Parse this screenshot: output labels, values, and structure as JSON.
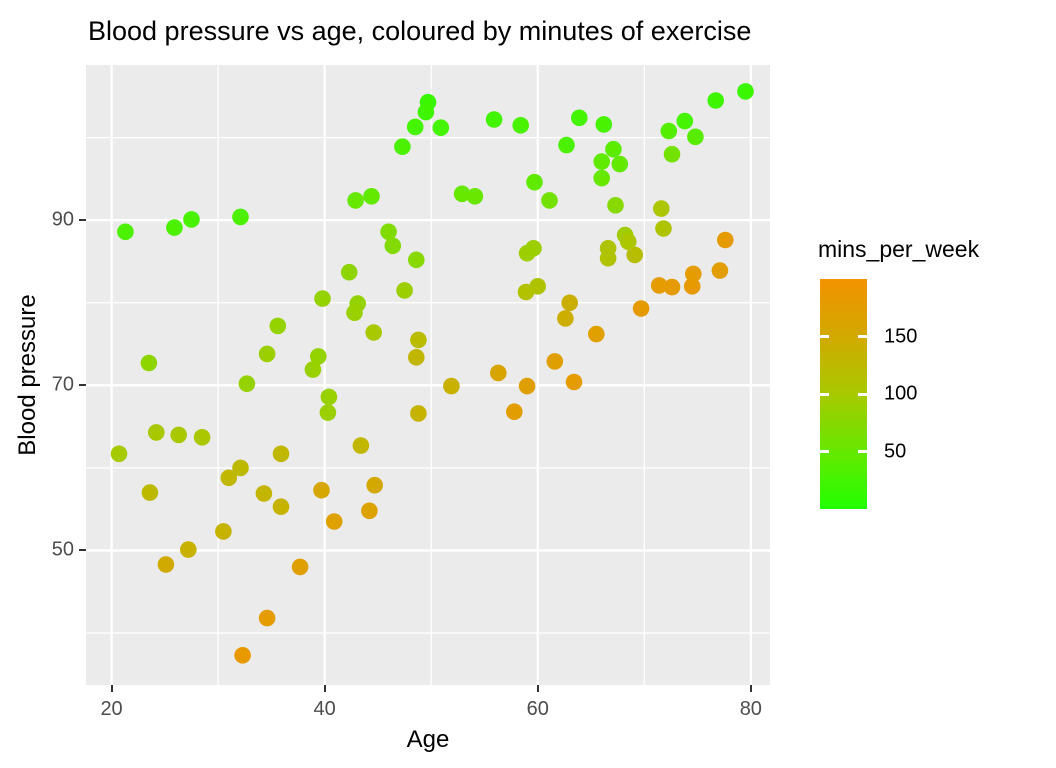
{
  "figure": {
    "title": "Blood pressure vs age, coloured by minutes of exercise"
  },
  "chart_data": {
    "type": "scatter",
    "title": "Blood pressure vs age, coloured by minutes of exercise",
    "xlabel": "Age",
    "ylabel": "Blood pressure",
    "x_ticks": [
      20,
      40,
      60,
      80
    ],
    "y_ticks": [
      50,
      70,
      90
    ],
    "x_minor_gridlines": [
      30,
      50,
      70
    ],
    "y_minor_gridlines": [
      40,
      60,
      80,
      100
    ],
    "xlim": [
      17.6,
      81.8
    ],
    "ylim": [
      33.7,
      108.8
    ],
    "panel_background": "#EBEBEB",
    "gridline_color": "#FFFFFF",
    "tick_label_color": "#4D4D4D",
    "tick_mark_color": "#333333",
    "point_color_low": "#22FF00",
    "point_color_high": "#F29200",
    "legend": {
      "title": "mins_per_week",
      "domain": [
        0,
        200
      ],
      "ticks": [
        {
          "value": 150,
          "label": "150"
        },
        {
          "value": 100,
          "label": "100"
        },
        {
          "value": 50,
          "label": "50"
        }
      ],
      "gradient_stops": [
        {
          "value": 0,
          "color": "#22FF00"
        },
        {
          "value": 50,
          "color": "#66E800"
        },
        {
          "value": 100,
          "color": "#A8C900"
        },
        {
          "value": 150,
          "color": "#D2A900"
        },
        {
          "value": 200,
          "color": "#F29200"
        }
      ]
    },
    "columns": [
      "age",
      "blood_pressure",
      "mins_per_week"
    ],
    "points": [
      [
        21.3,
        88.6,
        30
      ],
      [
        25.9,
        89.1,
        30
      ],
      [
        27.5,
        90.1,
        28
      ],
      [
        32.1,
        90.4,
        30
      ],
      [
        35.6,
        77.2,
        85
      ],
      [
        34.6,
        73.8,
        90
      ],
      [
        23.5,
        72.7,
        80
      ],
      [
        39.4,
        73.5,
        85
      ],
      [
        38.9,
        71.9,
        88
      ],
      [
        49.7,
        104.3,
        18
      ],
      [
        49.5,
        103.1,
        22
      ],
      [
        48.5,
        101.3,
        25
      ],
      [
        50.9,
        101.2,
        25
      ],
      [
        55.9,
        102.2,
        24
      ],
      [
        58.4,
        101.5,
        28
      ],
      [
        47.3,
        98.9,
        30
      ],
      [
        59.7,
        94.6,
        45
      ],
      [
        42.9,
        92.4,
        50
      ],
      [
        44.4,
        92.9,
        48
      ],
      [
        52.9,
        93.2,
        50
      ],
      [
        54.1,
        92.9,
        52
      ],
      [
        46.0,
        88.6,
        70
      ],
      [
        46.4,
        86.9,
        72
      ],
      [
        48.6,
        85.2,
        75
      ],
      [
        42.3,
        83.7,
        80
      ],
      [
        39.8,
        80.5,
        85
      ],
      [
        43.1,
        79.9,
        85
      ],
      [
        42.8,
        78.8,
        88
      ],
      [
        47.5,
        81.5,
        90
      ],
      [
        44.6,
        76.4,
        100
      ],
      [
        48.8,
        75.5,
        120
      ],
      [
        48.6,
        73.4,
        130
      ],
      [
        59.0,
        86.0,
        92
      ],
      [
        59.6,
        86.6,
        90
      ],
      [
        60.0,
        82.0,
        110
      ],
      [
        58.9,
        81.3,
        112
      ],
      [
        79.5,
        105.6,
        18
      ],
      [
        76.7,
        104.5,
        22
      ],
      [
        63.9,
        102.4,
        25
      ],
      [
        66.2,
        101.6,
        28
      ],
      [
        73.8,
        102.0,
        25
      ],
      [
        72.3,
        100.8,
        38
      ],
      [
        74.8,
        100.1,
        40
      ],
      [
        62.7,
        99.1,
        30
      ],
      [
        67.1,
        98.6,
        42
      ],
      [
        72.6,
        98.0,
        60
      ],
      [
        66.0,
        97.1,
        45
      ],
      [
        67.7,
        96.8,
        48
      ],
      [
        66.0,
        95.1,
        50
      ],
      [
        61.1,
        92.4,
        60
      ],
      [
        67.3,
        91.8,
        75
      ],
      [
        71.6,
        91.4,
        105
      ],
      [
        71.8,
        89.0,
        108
      ],
      [
        68.2,
        88.2,
        95
      ],
      [
        68.5,
        87.4,
        105
      ],
      [
        66.6,
        86.6,
        108
      ],
      [
        66.6,
        85.4,
        110
      ],
      [
        69.1,
        85.8,
        118
      ],
      [
        77.6,
        87.6,
        180
      ],
      [
        74.6,
        83.5,
        178
      ],
      [
        77.1,
        83.9,
        175
      ],
      [
        74.5,
        82.0,
        182
      ],
      [
        72.6,
        81.9,
        180
      ],
      [
        71.4,
        82.1,
        178
      ],
      [
        69.7,
        79.3,
        180
      ],
      [
        63.0,
        80.0,
        140
      ],
      [
        62.6,
        78.1,
        142
      ],
      [
        65.5,
        76.2,
        170
      ],
      [
        61.6,
        72.9,
        172
      ],
      [
        40.4,
        68.6,
        88
      ],
      [
        40.3,
        66.7,
        90
      ],
      [
        48.8,
        66.6,
        135
      ],
      [
        51.9,
        69.9,
        138
      ],
      [
        56.3,
        71.5,
        160
      ],
      [
        59.0,
        69.9,
        172
      ],
      [
        57.8,
        66.8,
        175
      ],
      [
        63.4,
        70.4,
        178
      ],
      [
        43.4,
        62.7,
        130
      ],
      [
        39.7,
        57.3,
        155
      ],
      [
        44.7,
        57.9,
        152
      ],
      [
        44.2,
        54.8,
        165
      ],
      [
        40.9,
        53.5,
        168
      ],
      [
        32.7,
        70.2,
        85
      ],
      [
        24.2,
        64.3,
        100
      ],
      [
        26.3,
        64.0,
        102
      ],
      [
        28.5,
        63.7,
        103
      ],
      [
        20.7,
        61.7,
        98
      ],
      [
        35.9,
        61.7,
        128
      ],
      [
        32.1,
        60.0,
        125
      ],
      [
        31.0,
        58.8,
        128
      ],
      [
        34.3,
        56.9,
        132
      ],
      [
        35.9,
        55.3,
        135
      ],
      [
        23.6,
        57.0,
        125
      ],
      [
        30.5,
        52.3,
        135
      ],
      [
        27.2,
        50.1,
        138
      ],
      [
        25.1,
        48.3,
        148
      ],
      [
        37.7,
        48.0,
        172
      ],
      [
        34.6,
        41.8,
        178
      ],
      [
        32.3,
        37.3,
        185
      ]
    ]
  }
}
